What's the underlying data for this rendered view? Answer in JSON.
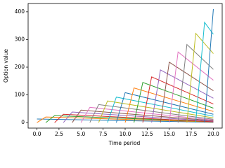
{
  "chart_data": {
    "type": "line",
    "x_label": "Time period",
    "y_label": "Option value",
    "xlim": [
      -1,
      21
    ],
    "ylim": [
      -20,
      430
    ],
    "xticks": [
      {
        "value": 0,
        "label": "0.0"
      },
      {
        "value": 2.5,
        "label": "2.5"
      },
      {
        "value": 5,
        "label": "5.0"
      },
      {
        "value": 7.5,
        "label": "7.5"
      },
      {
        "value": 10,
        "label": "10.0"
      },
      {
        "value": 12.5,
        "label": "12.5"
      },
      {
        "value": 15,
        "label": "15.0"
      },
      {
        "value": 17.5,
        "label": "17.5"
      },
      {
        "value": 20,
        "label": "20.0"
      }
    ],
    "yticks": [
      0,
      100,
      200,
      300,
      400
    ],
    "grid": false,
    "series": [
      {
        "color": "#1f77b4",
        "x": [
          0,
          20
        ],
        "values": [
          13,
          1
        ]
      },
      {
        "color": "#ff7f0e",
        "x": [
          0,
          1,
          20
        ],
        "values": [
          0,
          20,
          2
        ]
      },
      {
        "color": "#2ca02c",
        "x": [
          1,
          2,
          20
        ],
        "values": [
          0,
          25,
          3
        ]
      },
      {
        "color": "#d62728",
        "x": [
          2,
          3,
          20
        ],
        "values": [
          0,
          30,
          3
        ]
      },
      {
        "color": "#9467bd",
        "x": [
          3,
          4,
          20
        ],
        "values": [
          0,
          38,
          5
        ]
      },
      {
        "color": "#8c564b",
        "x": [
          4,
          5,
          20
        ],
        "values": [
          0,
          45,
          7
        ]
      },
      {
        "color": "#e377c2",
        "x": [
          5,
          6,
          20
        ],
        "values": [
          0,
          55,
          9
        ]
      },
      {
        "color": "#7f7f7f",
        "x": [
          6,
          7,
          20
        ],
        "values": [
          0,
          65,
          12
        ]
      },
      {
        "color": "#bcbd22",
        "x": [
          7,
          8,
          20
        ],
        "values": [
          0,
          78,
          17
        ]
      },
      {
        "color": "#17becf",
        "x": [
          8,
          9,
          20
        ],
        "values": [
          0,
          92,
          23
        ]
      },
      {
        "color": "#1f77b4",
        "x": [
          9,
          10,
          20
        ],
        "values": [
          0,
          108,
          30
        ]
      },
      {
        "color": "#ff7f0e",
        "x": [
          10,
          11,
          20
        ],
        "values": [
          0,
          125,
          40
        ]
      },
      {
        "color": "#2ca02c",
        "x": [
          11,
          12,
          20
        ],
        "values": [
          0,
          145,
          52
        ]
      },
      {
        "color": "#d62728",
        "x": [
          12,
          13,
          20
        ],
        "values": [
          0,
          165,
          67
        ]
      },
      {
        "color": "#9467bd",
        "x": [
          13,
          14,
          20
        ],
        "values": [
          0,
          190,
          88
        ]
      },
      {
        "color": "#8c564b",
        "x": [
          14,
          15,
          20
        ],
        "values": [
          0,
          218,
          115
        ]
      },
      {
        "color": "#e377c2",
        "x": [
          15,
          16,
          20
        ],
        "values": [
          0,
          255,
          153
        ]
      },
      {
        "color": "#7f7f7f",
        "x": [
          16,
          17,
          20
        ],
        "values": [
          0,
          282,
          192
        ]
      },
      {
        "color": "#bcbd22",
        "x": [
          17,
          18,
          20
        ],
        "values": [
          0,
          322,
          249
        ]
      },
      {
        "color": "#17becf",
        "x": [
          18,
          19,
          20
        ],
        "values": [
          0,
          362,
          319
        ]
      },
      {
        "color": "#1f77b4",
        "x": [
          19,
          20
        ],
        "values": [
          0,
          410
        ]
      }
    ]
  }
}
